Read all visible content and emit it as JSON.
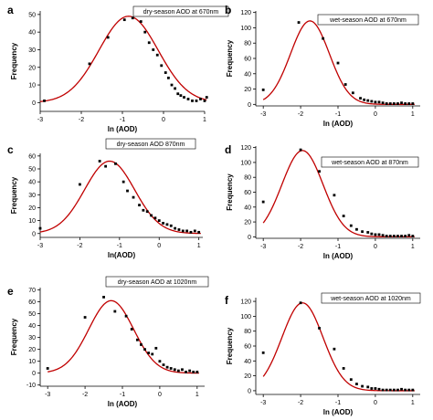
{
  "figure": {
    "curve_color": "#c00000",
    "point_color": "#000000"
  },
  "chart_data": [
    {
      "panel": "a",
      "type": "scatter",
      "legend": "dry-season AOD at 670nm",
      "legend_position": "top-center",
      "xlabel": "ln (AOD)",
      "ylabel": "Frequency",
      "xlim": [
        -3,
        1
      ],
      "ylim": [
        -5,
        52
      ],
      "xticks": [
        -3,
        -2,
        -1,
        0,
        1
      ],
      "yticks": [
        0,
        10,
        20,
        30,
        40,
        50
      ],
      "ytick_labels": [
        "0",
        "10",
        "20",
        "30",
        "40",
        "50"
      ],
      "fit": {
        "type": "gaussian",
        "a": 49,
        "mu": -0.85,
        "sigma": 0.72,
        "y0": 0
      },
      "points": [
        [
          -2.9,
          1
        ],
        [
          -1.8,
          22
        ],
        [
          -1.35,
          37
        ],
        [
          -0.95,
          47
        ],
        [
          -0.75,
          48
        ],
        [
          -0.55,
          46
        ],
        [
          -0.45,
          40
        ],
        [
          -0.35,
          34
        ],
        [
          -0.25,
          30
        ],
        [
          -0.15,
          27
        ],
        [
          -0.05,
          21
        ],
        [
          0.05,
          17
        ],
        [
          0.12,
          14
        ],
        [
          0.2,
          10
        ],
        [
          0.28,
          8
        ],
        [
          0.35,
          5
        ],
        [
          0.42,
          4
        ],
        [
          0.5,
          3
        ],
        [
          0.6,
          2
        ],
        [
          0.7,
          1
        ],
        [
          0.8,
          1
        ],
        [
          0.9,
          2
        ],
        [
          1.0,
          1
        ],
        [
          1.05,
          3
        ]
      ]
    },
    {
      "panel": "b",
      "type": "scatter",
      "legend": "wet-season AOD at 670nm",
      "legend_position": "top-right",
      "xlabel": "ln (AOD)",
      "ylabel": "Frequency",
      "xlim": [
        -3.2,
        1.2
      ],
      "ylim": [
        -2,
        122
      ],
      "xticks": [
        -3,
        -2,
        -1,
        0,
        1
      ],
      "yticks": [
        0,
        20,
        40,
        60,
        80,
        100,
        120
      ],
      "ytick_labels": [
        "0",
        "20",
        "40",
        "60",
        "80",
        "100",
        "120"
      ],
      "fit": {
        "type": "gaussian",
        "a": 109,
        "mu": -1.75,
        "sigma": 0.52,
        "y0": 0
      },
      "points": [
        [
          -3.0,
          19
        ],
        [
          -2.05,
          107
        ],
        [
          -1.4,
          86
        ],
        [
          -1.0,
          54
        ],
        [
          -0.8,
          26
        ],
        [
          -0.6,
          15
        ],
        [
          -0.4,
          8
        ],
        [
          -0.3,
          6
        ],
        [
          -0.2,
          5
        ],
        [
          -0.1,
          4
        ],
        [
          0.0,
          3
        ],
        [
          0.1,
          3
        ],
        [
          0.2,
          2
        ],
        [
          0.3,
          1
        ],
        [
          0.4,
          1
        ],
        [
          0.5,
          1
        ],
        [
          0.6,
          1
        ],
        [
          0.7,
          2
        ],
        [
          0.8,
          1
        ],
        [
          0.9,
          1
        ],
        [
          1.0,
          1
        ]
      ]
    },
    {
      "panel": "c",
      "type": "scatter",
      "legend": "dry-season AOD 870nm",
      "legend_position": "top-left",
      "xlabel": "ln(AOD)",
      "ylabel": "Frequency",
      "xlim": [
        -3,
        1.1
      ],
      "ylim": [
        -3,
        62
      ],
      "xticks": [
        -3,
        -2,
        -1,
        0,
        1
      ],
      "yticks": [
        0,
        10,
        20,
        30,
        40,
        50,
        60
      ],
      "ytick_labels": [
        "0",
        "10",
        "20",
        "30",
        "40",
        "50",
        "60"
      ],
      "fit": {
        "type": "gaussian",
        "a": 56,
        "mu": -1.25,
        "sigma": 0.63,
        "y0": 0
      },
      "points": [
        [
          -3.0,
          4
        ],
        [
          -2.0,
          38
        ],
        [
          -1.5,
          56
        ],
        [
          -1.35,
          52
        ],
        [
          -1.1,
          54
        ],
        [
          -0.9,
          40
        ],
        [
          -0.8,
          33
        ],
        [
          -0.65,
          28
        ],
        [
          -0.5,
          22
        ],
        [
          -0.4,
          18
        ],
        [
          -0.3,
          17
        ],
        [
          -0.2,
          14
        ],
        [
          -0.1,
          12
        ],
        [
          0.0,
          10
        ],
        [
          0.1,
          8
        ],
        [
          0.2,
          7
        ],
        [
          0.3,
          6
        ],
        [
          0.4,
          4
        ],
        [
          0.5,
          3
        ],
        [
          0.6,
          2
        ],
        [
          0.7,
          2
        ],
        [
          0.8,
          1
        ],
        [
          0.9,
          2
        ],
        [
          1.0,
          1
        ]
      ]
    },
    {
      "panel": "d",
      "type": "scatter",
      "legend": "wet-season AOD at 870nm",
      "legend_position": "top-right",
      "xlabel": "ln (AOD)",
      "ylabel": "Frequency",
      "xlim": [
        -3.2,
        1.2
      ],
      "ylim": [
        -2,
        122
      ],
      "xticks": [
        -3,
        -2,
        -1,
        0,
        1
      ],
      "yticks": [
        0,
        20,
        40,
        60,
        80,
        100,
        120
      ],
      "ytick_labels": [
        "0",
        "20",
        "40",
        "60",
        "80",
        "100",
        "120"
      ],
      "fit": {
        "type": "gaussian",
        "a": 116,
        "mu": -1.95,
        "sigma": 0.55,
        "y0": 0
      },
      "points": [
        [
          -3.0,
          47
        ],
        [
          -2.0,
          117
        ],
        [
          -1.5,
          88
        ],
        [
          -1.1,
          56
        ],
        [
          -0.85,
          28
        ],
        [
          -0.65,
          15
        ],
        [
          -0.5,
          10
        ],
        [
          -0.35,
          7
        ],
        [
          -0.2,
          6
        ],
        [
          -0.1,
          4
        ],
        [
          0.0,
          3
        ],
        [
          0.1,
          3
        ],
        [
          0.2,
          2
        ],
        [
          0.3,
          1
        ],
        [
          0.4,
          1
        ],
        [
          0.5,
          1
        ],
        [
          0.6,
          1
        ],
        [
          0.7,
          1
        ],
        [
          0.8,
          1
        ],
        [
          0.9,
          2
        ],
        [
          1.0,
          1
        ]
      ]
    },
    {
      "panel": "e",
      "type": "scatter",
      "legend": "dry-season AOD at 1020nm",
      "legend_position": "top-right",
      "xlabel": "ln (AOD)",
      "ylabel": "Frequency",
      "xlim": [
        -3.2,
        1.2
      ],
      "ylim": [
        -11,
        72
      ],
      "xticks": [
        -3,
        -2,
        -1,
        0,
        1
      ],
      "yticks": [
        -10,
        0,
        10,
        20,
        30,
        40,
        50,
        60,
        70
      ],
      "ytick_labels": [
        "-10",
        "0",
        "10",
        "20",
        "30",
        "40",
        "50",
        "60",
        "70"
      ],
      "fit": {
        "type": "gaussian",
        "a": 61,
        "mu": -1.3,
        "sigma": 0.6,
        "y0": 0
      },
      "points": [
        [
          -3.0,
          4
        ],
        [
          -2.0,
          47
        ],
        [
          -1.5,
          64
        ],
        [
          -1.2,
          52
        ],
        [
          -0.9,
          48
        ],
        [
          -0.75,
          37
        ],
        [
          -0.6,
          28
        ],
        [
          -0.5,
          24
        ],
        [
          -0.4,
          20
        ],
        [
          -0.3,
          17
        ],
        [
          -0.2,
          16
        ],
        [
          -0.1,
          21
        ],
        [
          0.0,
          10
        ],
        [
          0.1,
          7
        ],
        [
          0.2,
          5
        ],
        [
          0.3,
          4
        ],
        [
          0.4,
          3
        ],
        [
          0.5,
          2
        ],
        [
          0.6,
          3
        ],
        [
          0.7,
          1
        ],
        [
          0.8,
          2
        ],
        [
          0.9,
          1
        ],
        [
          1.0,
          1
        ]
      ]
    },
    {
      "panel": "f",
      "type": "scatter",
      "legend": "wet-season AOD at 1020nm",
      "legend_position": "top-right",
      "xlabel": "ln (AOD)",
      "ylabel": "Frequency",
      "xlim": [
        -3.2,
        1.2
      ],
      "ylim": [
        -5,
        125
      ],
      "xticks": [
        -3,
        -2,
        -1,
        0,
        1
      ],
      "yticks": [
        0,
        20,
        40,
        60,
        80,
        100,
        120
      ],
      "ytick_labels": [
        "0",
        "20",
        "40",
        "60",
        "80",
        "100",
        "120"
      ],
      "fit": {
        "type": "gaussian",
        "a": 118,
        "mu": -1.95,
        "sigma": 0.55,
        "y0": 0
      },
      "points": [
        [
          -3.0,
          51
        ],
        [
          -2.0,
          118
        ],
        [
          -1.5,
          84
        ],
        [
          -1.1,
          56
        ],
        [
          -0.85,
          30
        ],
        [
          -0.65,
          15
        ],
        [
          -0.5,
          9
        ],
        [
          -0.35,
          6
        ],
        [
          -0.2,
          5
        ],
        [
          -0.1,
          3
        ],
        [
          0.0,
          3
        ],
        [
          0.1,
          2
        ],
        [
          0.2,
          1
        ],
        [
          0.3,
          1
        ],
        [
          0.4,
          1
        ],
        [
          0.5,
          1
        ],
        [
          0.6,
          1
        ],
        [
          0.7,
          2
        ],
        [
          0.8,
          1
        ],
        [
          0.9,
          1
        ],
        [
          1.0,
          1
        ]
      ]
    }
  ]
}
